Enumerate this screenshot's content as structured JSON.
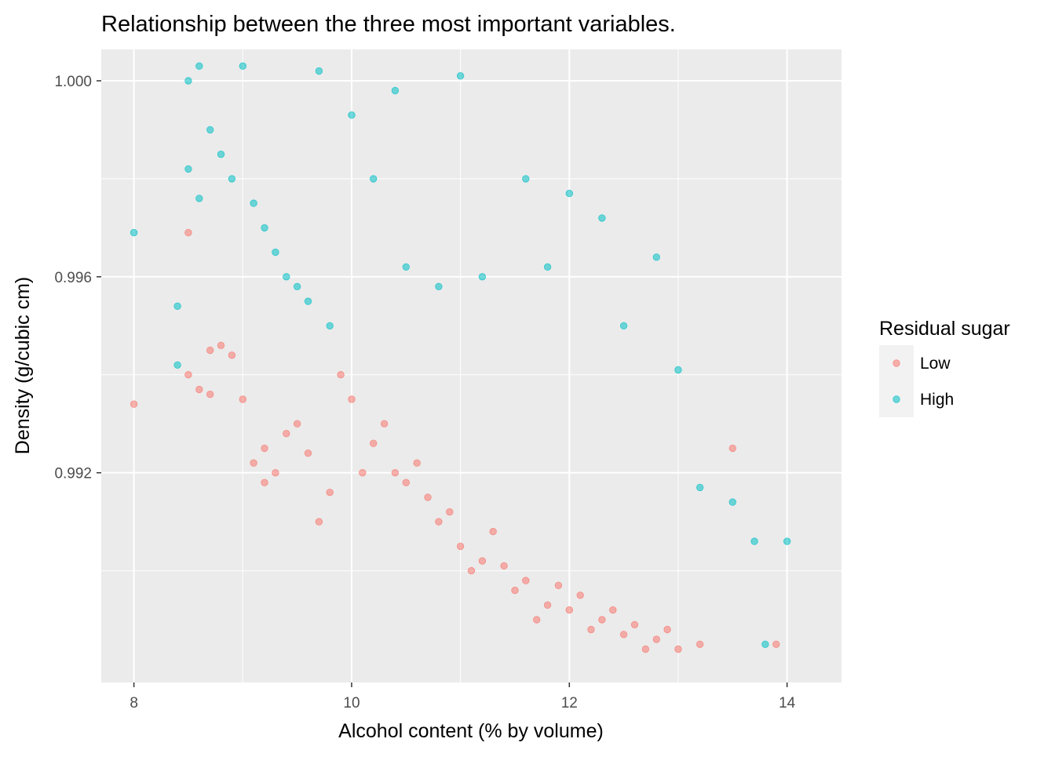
{
  "chart_data": {
    "type": "scatter",
    "title": "Relationship between the three most important variables.",
    "xlabel": "Alcohol content (% by volume)",
    "ylabel": "Density (g/cubic cm)",
    "xlim": [
      7.7,
      14.5
    ],
    "ylim": [
      0.98772,
      1.00064
    ],
    "x_ticks": [
      8,
      10,
      12,
      14
    ],
    "x_tick_labels": [
      "8",
      "10",
      "12",
      "14"
    ],
    "y_ticks": [
      0.992,
      0.996,
      1.0
    ],
    "y_tick_labels": [
      "0.992",
      "0.996",
      "1.000"
    ],
    "grid": true,
    "legend": {
      "title": "Residual sugar",
      "position": "right"
    },
    "colors": {
      "panel": "#ebebeb",
      "grid": "#ffffff",
      "Low": "#f8766d",
      "High": "#00bfc4"
    },
    "series": [
      {
        "name": "Low",
        "color": "#f8766d",
        "points": [
          [
            8.0,
            0.9934
          ],
          [
            8.5,
            0.9969
          ],
          [
            8.5,
            0.994
          ],
          [
            8.6,
            0.9937
          ],
          [
            8.7,
            0.9945
          ],
          [
            8.7,
            0.9936
          ],
          [
            8.8,
            0.9946
          ],
          [
            8.9,
            0.9944
          ],
          [
            9.0,
            0.9935
          ],
          [
            9.1,
            0.9922
          ],
          [
            9.2,
            0.9925
          ],
          [
            9.2,
            0.9918
          ],
          [
            9.3,
            0.992
          ],
          [
            9.4,
            0.9928
          ],
          [
            9.5,
            0.993
          ],
          [
            9.6,
            0.9924
          ],
          [
            9.7,
            0.991
          ],
          [
            9.8,
            0.9916
          ],
          [
            9.9,
            0.994
          ],
          [
            10.0,
            0.9935
          ],
          [
            10.1,
            0.992
          ],
          [
            10.2,
            0.9926
          ],
          [
            10.3,
            0.993
          ],
          [
            10.4,
            0.992
          ],
          [
            10.5,
            0.9918
          ],
          [
            10.6,
            0.9922
          ],
          [
            10.7,
            0.9915
          ],
          [
            10.8,
            0.991
          ],
          [
            10.9,
            0.9912
          ],
          [
            11.0,
            0.9905
          ],
          [
            11.1,
            0.99
          ],
          [
            11.2,
            0.9902
          ],
          [
            11.3,
            0.9908
          ],
          [
            11.4,
            0.9901
          ],
          [
            11.5,
            0.9896
          ],
          [
            11.6,
            0.9898
          ],
          [
            11.7,
            0.989
          ],
          [
            11.8,
            0.9893
          ],
          [
            11.9,
            0.9897
          ],
          [
            12.0,
            0.9892
          ],
          [
            12.1,
            0.9895
          ],
          [
            12.2,
            0.9888
          ],
          [
            12.3,
            0.989
          ],
          [
            12.4,
            0.9892
          ],
          [
            12.5,
            0.9887
          ],
          [
            12.6,
            0.9889
          ],
          [
            12.7,
            0.9884
          ],
          [
            12.8,
            0.9886
          ],
          [
            12.9,
            0.9888
          ],
          [
            13.0,
            0.9884
          ],
          [
            13.2,
            0.9885
          ],
          [
            13.5,
            0.9925
          ],
          [
            13.9,
            0.9885
          ]
        ]
      },
      {
        "name": "High",
        "color": "#00bfc4",
        "points": [
          [
            8.0,
            0.9969
          ],
          [
            8.4,
            0.9954
          ],
          [
            8.4,
            0.9942
          ],
          [
            8.5,
            1.0
          ],
          [
            8.5,
            0.9982
          ],
          [
            8.6,
            1.0003
          ],
          [
            8.6,
            0.9976
          ],
          [
            8.7,
            0.999
          ],
          [
            8.8,
            0.9985
          ],
          [
            8.9,
            0.998
          ],
          [
            9.0,
            1.0003
          ],
          [
            9.1,
            0.9975
          ],
          [
            9.2,
            0.997
          ],
          [
            9.3,
            0.9965
          ],
          [
            9.4,
            0.996
          ],
          [
            9.5,
            0.9958
          ],
          [
            9.6,
            0.9955
          ],
          [
            9.7,
            1.0002
          ],
          [
            9.8,
            0.995
          ],
          [
            10.0,
            0.9993
          ],
          [
            10.2,
            0.998
          ],
          [
            10.4,
            0.9998
          ],
          [
            10.5,
            0.9962
          ],
          [
            10.8,
            0.9958
          ],
          [
            11.0,
            1.0001
          ],
          [
            11.2,
            0.996
          ],
          [
            11.6,
            0.998
          ],
          [
            11.8,
            0.9962
          ],
          [
            12.0,
            0.9977
          ],
          [
            12.3,
            0.9972
          ],
          [
            12.5,
            0.995
          ],
          [
            12.8,
            0.9964
          ],
          [
            13.0,
            0.9941
          ],
          [
            13.2,
            0.9917
          ],
          [
            13.5,
            0.9914
          ],
          [
            13.7,
            0.9906
          ],
          [
            14.0,
            0.9906
          ],
          [
            13.8,
            0.9885
          ]
        ]
      }
    ]
  }
}
